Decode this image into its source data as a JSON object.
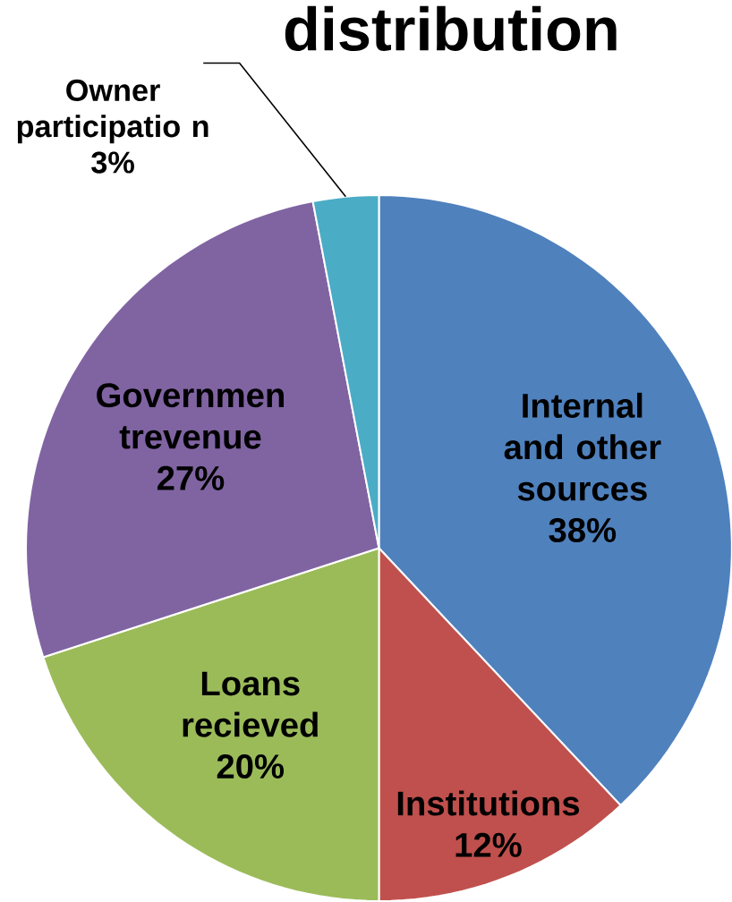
{
  "chart_data": {
    "type": "pie",
    "title": "distribution",
    "categories": [
      "Internal and other sources",
      "Institutions",
      "Loans recieved",
      "Governmen trevenue",
      "Owner participatio n"
    ],
    "values": [
      38,
      12,
      20,
      27,
      3
    ],
    "colors": [
      "#4f81bd",
      "#c0504d",
      "#9bbb59",
      "#8064a2",
      "#4bacc6"
    ],
    "value_labels": [
      "38%",
      "12%",
      "20%",
      "27%",
      "3%"
    ]
  }
}
